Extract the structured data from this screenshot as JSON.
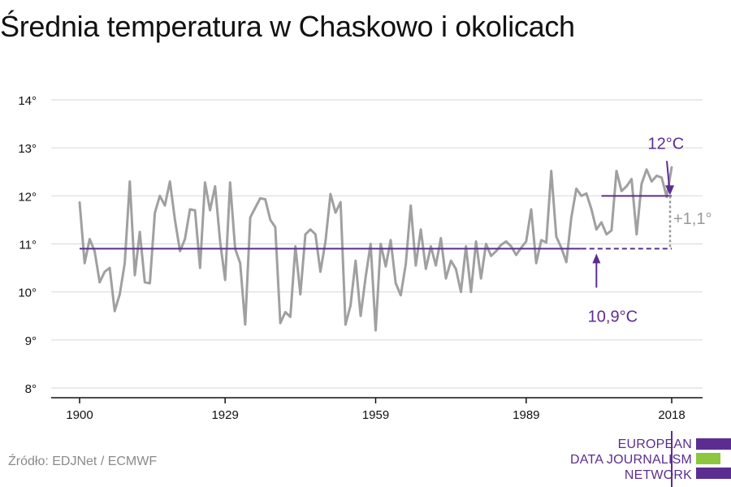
{
  "title": "Średnia temperatura w Chaskowo i okolicach",
  "source": "Źródło: EDJNet / ECMWF",
  "logo": {
    "line1": "EUROPEAN",
    "line2": "DATA JOURNALISM",
    "line3": "NETWORK"
  },
  "colors": {
    "series": "#a0a0a0",
    "accent": "#5c2d91",
    "grid": "#dddddd",
    "axis": "#111111",
    "logo_green": "#8dc63f"
  },
  "chart_data": {
    "type": "line",
    "title": "Średnia temperatura w Chaskowo i okolicach",
    "xlabel": "",
    "ylabel": "",
    "xlim": [
      1900,
      2018
    ],
    "ylim": [
      8,
      14
    ],
    "x_ticks": [
      1900,
      1929,
      1959,
      1989,
      2018
    ],
    "x_tick_labels": [
      "1900",
      "1929",
      "1959",
      "1989",
      "2018"
    ],
    "y_ticks": [
      8,
      9,
      10,
      11,
      12,
      13,
      14
    ],
    "y_tick_labels": [
      "8°",
      "9°",
      "10°",
      "11°",
      "12°",
      "13°",
      "14°"
    ],
    "grid": true,
    "series": [
      {
        "x": [
          1900,
          1901,
          1902,
          1903,
          1904,
          1905,
          1906,
          1907,
          1908,
          1909,
          1910,
          1911,
          1912,
          1913,
          1914,
          1915,
          1916,
          1917,
          1918,
          1919,
          1920,
          1921,
          1922,
          1923,
          1924,
          1925,
          1926,
          1927,
          1928,
          1929,
          1930,
          1931,
          1932,
          1933,
          1934,
          1935,
          1936,
          1937,
          1938,
          1939,
          1940,
          1941,
          1942,
          1943,
          1944,
          1945,
          1946,
          1947,
          1948,
          1949,
          1950,
          1951,
          1952,
          1953,
          1954,
          1955,
          1956,
          1957,
          1958,
          1959,
          1960,
          1961,
          1962,
          1963,
          1964,
          1965,
          1966,
          1967,
          1968,
          1969,
          1970,
          1971,
          1972,
          1973,
          1974,
          1975,
          1976,
          1977,
          1978,
          1979,
          1980,
          1981,
          1982,
          1983,
          1984,
          1985,
          1986,
          1987,
          1988,
          1989,
          1990,
          1991,
          1992,
          1993,
          1994,
          1995,
          1996,
          1997,
          1998,
          1999,
          2000,
          2001,
          2002,
          2003,
          2004,
          2005,
          2006,
          2007,
          2008,
          2009,
          2010,
          2011,
          2012,
          2013,
          2014,
          2015,
          2016,
          2017,
          2018
        ],
        "values": [
          11.87,
          10.6,
          11.1,
          10.85,
          10.2,
          10.42,
          10.5,
          9.6,
          9.95,
          10.6,
          12.3,
          10.35,
          11.25,
          10.2,
          10.18,
          11.65,
          12.0,
          11.8,
          12.3,
          11.5,
          10.85,
          11.1,
          11.72,
          11.7,
          10.5,
          12.28,
          11.7,
          12.2,
          11.05,
          10.25,
          12.28,
          10.9,
          10.6,
          9.32,
          11.55,
          11.75,
          11.95,
          11.93,
          11.5,
          11.35,
          9.35,
          9.58,
          9.48,
          10.95,
          9.95,
          11.2,
          11.3,
          11.2,
          10.42,
          11.05,
          12.04,
          11.65,
          11.87,
          9.32,
          9.72,
          10.65,
          9.5,
          10.3,
          11.0,
          9.2,
          11.0,
          10.53,
          11.08,
          10.18,
          9.93,
          10.58,
          11.8,
          10.55,
          11.3,
          10.48,
          10.95,
          10.55,
          11.12,
          10.28,
          10.65,
          10.48,
          10.0,
          10.95,
          10.0,
          11.05,
          10.28,
          11.0,
          10.75,
          10.85,
          10.98,
          11.05,
          10.95,
          10.77,
          10.92,
          11.05,
          11.72,
          10.6,
          11.08,
          11.03,
          12.52,
          11.15,
          10.92,
          10.62,
          11.55,
          12.15,
          12.0,
          12.05,
          11.72,
          11.3,
          11.45,
          11.2,
          11.28,
          12.52,
          12.1,
          12.2,
          12.35,
          11.2,
          12.25,
          12.55,
          12.3,
          12.42,
          12.38,
          11.98,
          12.6
        ]
      }
    ],
    "baseline_1900_2000": {
      "value": 10.9,
      "label": "10,9°C"
    },
    "recent_2008_2018": {
      "value": 12.0,
      "label": "12°C"
    },
    "difference_label": "+1,1°"
  }
}
